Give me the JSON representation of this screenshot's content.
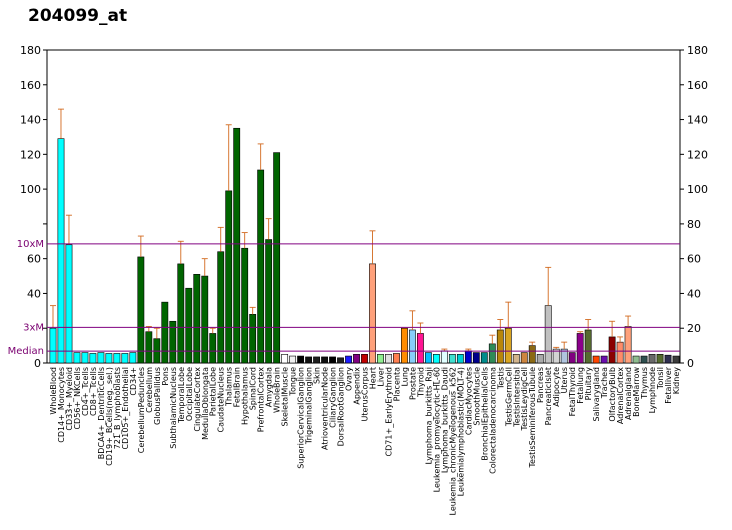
{
  "chart_data": {
    "type": "bar",
    "title": "204099_at",
    "ylim": [
      0,
      180
    ],
    "yticks": [
      "0",
      "20",
      "40",
      "60",
      "80",
      "100",
      "120",
      "140",
      "160",
      "180"
    ],
    "left_tick_labels": [
      "0",
      "",
      "40",
      "",
      "60",
      "",
      "",
      "",
      "",
      "",
      "",
      "",
      ""
    ],
    "reference_lines": [
      {
        "label": "10xM",
        "value": 68.5,
        "color": "#800080"
      },
      {
        "label": "3xM",
        "value": 20.5,
        "color": "#800080"
      },
      {
        "label": "Median",
        "value": 6.8,
        "color": "#800080"
      }
    ],
    "categories": [
      "WholeBlood",
      "CD14+_Monocytes",
      "CD33+_Myeloid",
      "CD56+_NKCells",
      "CD4+_Tcells",
      "CD8+_Tcells",
      "BDCA4+_DentriticCells",
      "CD19+_BCells(neg._sel.)",
      "721_B_lymphoblasts",
      "CD105+_Endothelial",
      "CD34+",
      "CerebellumPeduncles",
      "Cerebellum",
      "GlobusPallidus",
      "Pons",
      "SubthalamicNucleus",
      "TemporalLobe",
      "OccipitalLobe",
      "CingulateCortex",
      "MedullaOblongata",
      "ParietalLobe",
      "CaudateNucleus",
      "Thalamus",
      "FetalBrain",
      "Hypothalamus",
      "SpinalCord",
      "PrefrontalCortex",
      "Amygdala",
      "WholeBrain",
      "SkeletalMuscle",
      "Tongue",
      "SuperiorCervicalGanglion",
      "TrigeminalGanglion",
      "Skin",
      "AtrioventricularNode",
      "CiliaryGanglion",
      "DorsalRootGanglion",
      "Ovary",
      "Appendix",
      "UterusCorpus",
      "Heart",
      "Liver",
      "CD71+_EarlyErythroid",
      "Placenta",
      "Lung",
      "Prostate",
      "Thyroid",
      "Lymphoma_burkitts_Raji",
      "Leukemia_promyelocytic-HL-60",
      "Lymphoma_burkitts_Daudi",
      "Leukemia_chronicMyelogenous_k562",
      "Leukemialymphoblastic(MOLT-4)",
      "CardiacMyocytes",
      "SmoothMuscle",
      "BronchialEpithelialCells",
      "Colorectaladenocarcinoma",
      "Testis",
      "TestisGermCell",
      "TestisIntersitial",
      "TestisLeydigCell",
      "TestisSeminiferousTubule",
      "Pancreas",
      "PancreaticIslet",
      "Adipocyte",
      "Uterus",
      "FetalThyroid",
      "Fetallung",
      "Pituitary",
      "Salivarygland",
      "Trachea",
      "OlfactoryBulb",
      "AdrenalCortex",
      "Adrenalgland",
      "BoneMarrow",
      "Thymus",
      "Lymphnode",
      "Tonsil",
      "Fetalliver",
      "Kidney"
    ],
    "values": [
      20,
      129,
      68,
      6,
      6,
      5.5,
      6,
      5.5,
      5.5,
      5.5,
      6,
      61,
      18,
      14,
      35,
      24,
      57,
      43,
      51,
      50,
      17,
      64,
      99,
      135,
      66,
      28,
      111,
      71,
      121,
      5,
      4,
      4,
      3.5,
      3.5,
      3.5,
      3.5,
      3,
      4,
      5,
      5,
      57,
      5,
      5,
      5.5,
      20,
      19,
      17,
      6,
      5,
      7,
      5,
      5,
      7,
      6,
      6,
      11,
      19,
      20,
      5,
      6,
      10,
      5,
      33,
      8,
      8,
      6,
      17,
      19,
      4,
      4,
      15,
      12,
      21,
      4,
      4,
      5,
      5,
      4.5,
      4
    ],
    "errors": [
      13,
      17,
      17,
      0,
      0,
      0,
      0,
      0,
      0,
      0,
      0,
      12,
      3,
      6,
      0,
      0,
      13,
      0,
      0,
      10,
      3,
      14,
      38,
      0,
      9,
      4,
      15,
      12,
      0,
      0,
      0,
      0,
      0,
      0,
      0,
      0,
      0,
      0,
      0,
      0,
      19,
      0,
      0,
      0,
      0,
      11,
      6,
      0,
      0,
      1,
      0,
      0,
      1,
      0,
      0,
      5,
      6,
      15,
      0,
      0,
      2,
      0,
      22,
      1,
      4,
      0,
      1,
      6,
      0,
      0,
      9,
      3,
      6,
      0,
      0,
      0,
      0,
      0,
      0
    ],
    "colors": [
      "#00ffff",
      "#00ffff",
      "#00ffff",
      "#00ffff",
      "#00ffff",
      "#00ffff",
      "#00ffff",
      "#00ffff",
      "#00ffff",
      "#00ffff",
      "#00ffff",
      "#006400",
      "#006400",
      "#006400",
      "#006400",
      "#006400",
      "#006400",
      "#006400",
      "#006400",
      "#006400",
      "#006400",
      "#006400",
      "#006400",
      "#006400",
      "#006400",
      "#006400",
      "#006400",
      "#006400",
      "#006400",
      "#ffffff",
      "#f0f0f0",
      "#000000",
      "#101010",
      "#202020",
      "#101010",
      "#000000",
      "#202020",
      "#1a1aff",
      "#800080",
      "#c00000",
      "#ffa07a",
      "#90ee90",
      "#e0e0e0",
      "#ff7f50",
      "#ff8c00",
      "#87cefa",
      "#ff1493",
      "#00bfff",
      "#00ffff",
      "#e0ffff",
      "#40e0d0",
      "#00ced1",
      "#0000cd",
      "#00008b",
      "#008b8b",
      "#2e8b57",
      "#b8860b",
      "#daa520",
      "#d2b48c",
      "#cd853f",
      "#8b6914",
      "#a9a9a9",
      "#c0c0c0",
      "#d3d3d3",
      "#b0c4de",
      "#800080",
      "#8b008b",
      "#556b2f",
      "#ff4500",
      "#6a0dad",
      "#8b0000",
      "#ff8c69",
      "#ffa07a",
      "#8fbc8f",
      "#2f4f4f",
      "#696969",
      "#556b2f",
      "#2f2f4f",
      "#3c3c3c"
    ],
    "grid": false,
    "legend": "none"
  }
}
